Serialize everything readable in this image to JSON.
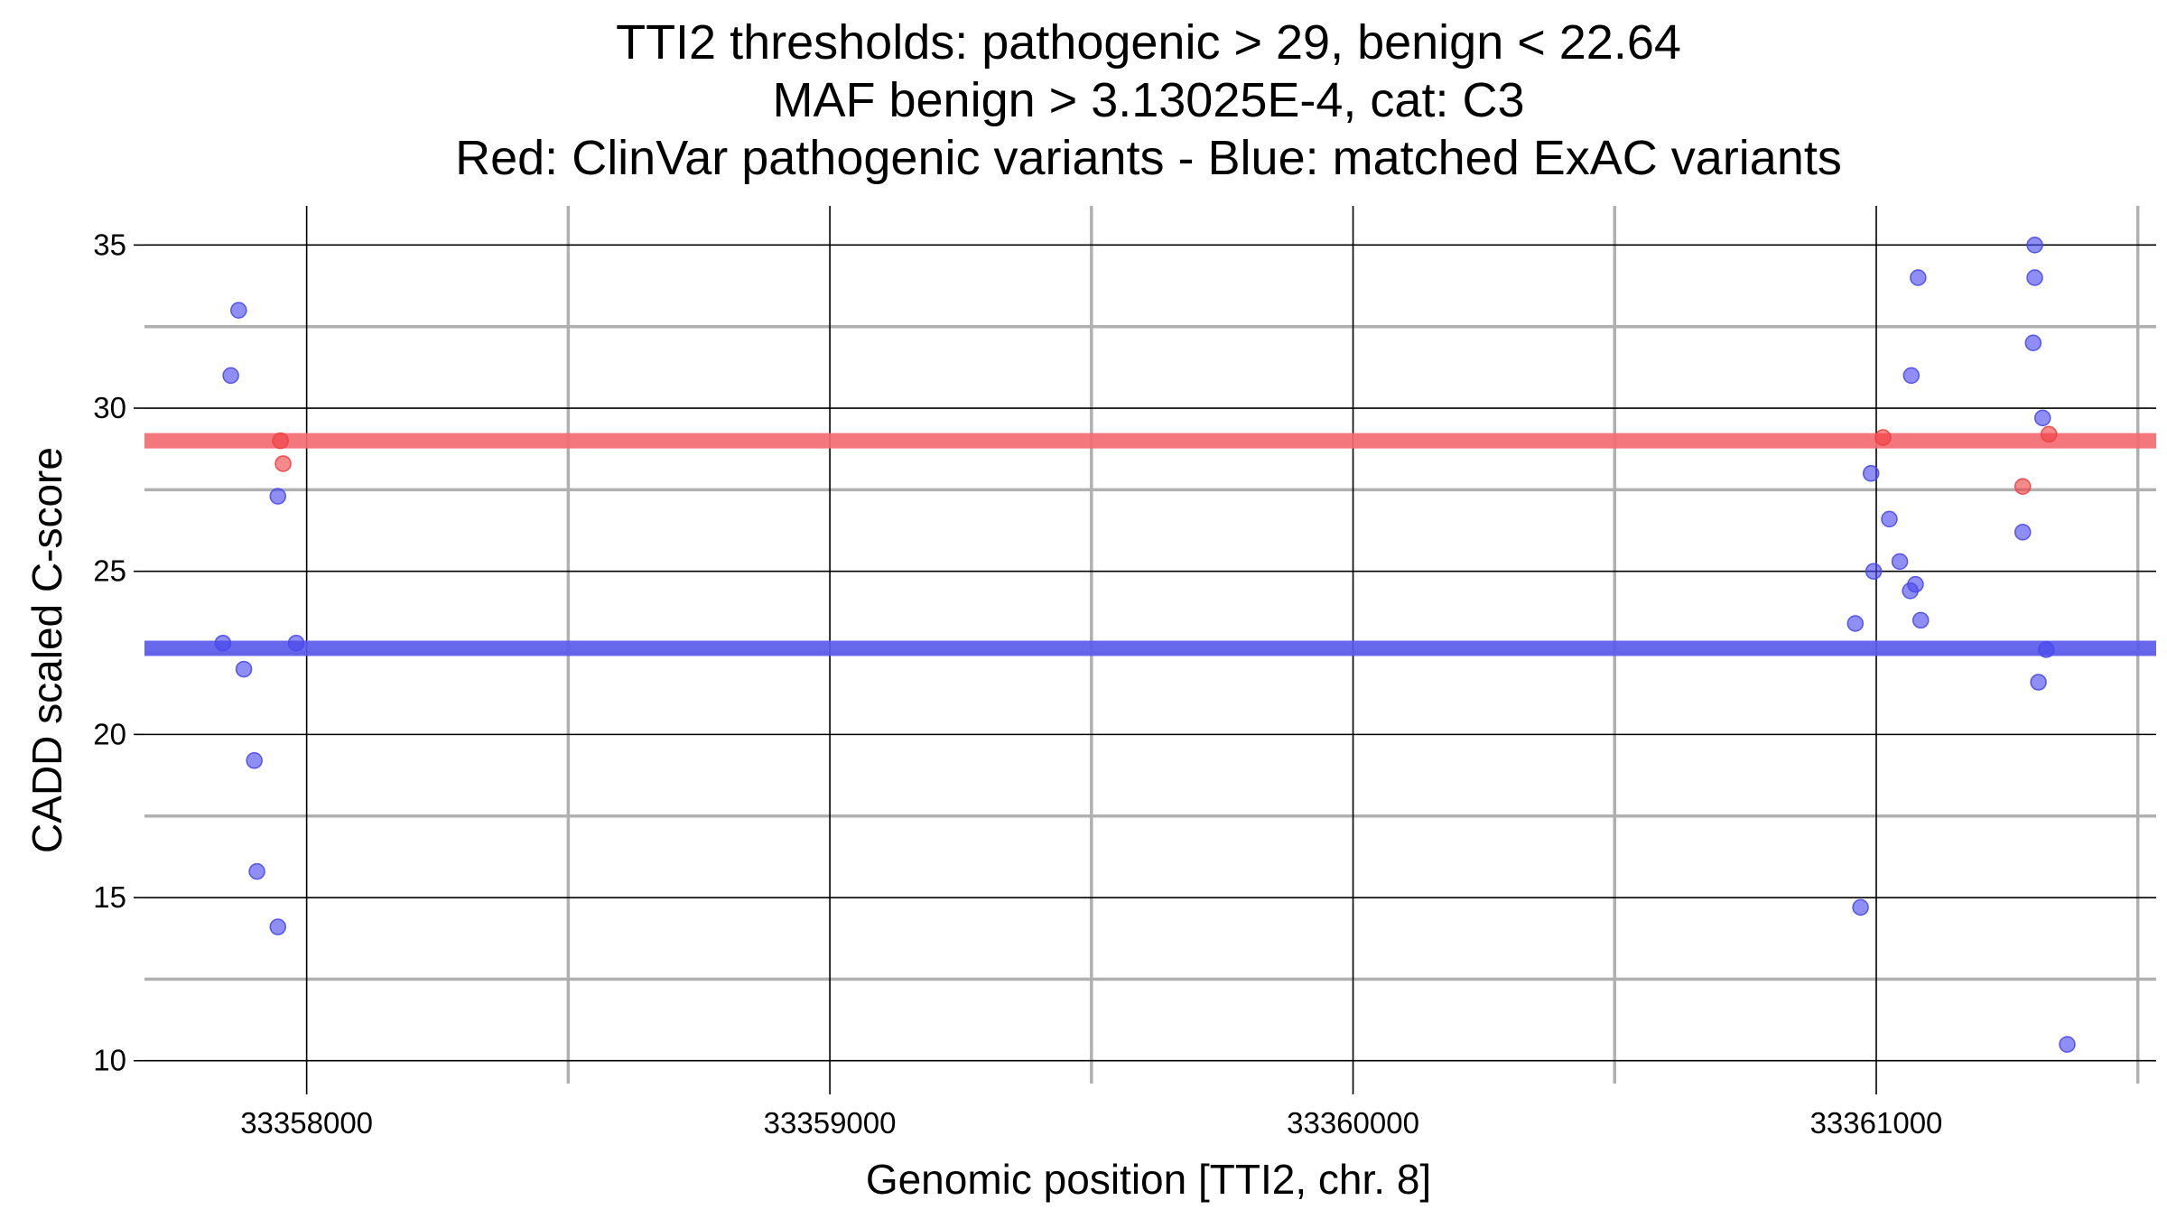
{
  "chart_data": {
    "type": "scatter",
    "title_lines": [
      "TTI2 thresholds: pathogenic > 29, benign < 22.64",
      "MAF benign > 3.13025E-4, cat: C3",
      "Red: ClinVar pathogenic variants - Blue: matched ExAC variants"
    ],
    "xlabel": "Genomic position [TTI2, chr. 8]",
    "ylabel": "CADD scaled C-score",
    "xlim": [
      33357690,
      33361535
    ],
    "ylim": [
      9.3,
      36.2
    ],
    "x_ticks": [
      33358000,
      33359000,
      33360000,
      33361000
    ],
    "x_tick_labels": [
      "33358000",
      "33359000",
      "33360000",
      "33361000"
    ],
    "x_minor_grid": [
      33358500,
      33359500,
      33360500,
      33361500
    ],
    "y_ticks": [
      10,
      15,
      20,
      25,
      30,
      35
    ],
    "y_tick_labels": [
      "10",
      "15",
      "20",
      "25",
      "30",
      "35"
    ],
    "y_minor_grid": [
      12.5,
      17.5,
      22.5,
      27.5,
      32.5
    ],
    "thresholds": [
      {
        "name": "pathogenic",
        "value": 29,
        "color": "#f26b72"
      },
      {
        "name": "benign",
        "value": 22.64,
        "color": "#5b5bea"
      }
    ],
    "series": [
      {
        "name": "ClinVar pathogenic variants",
        "color": "#f04040",
        "points": [
          {
            "x": 33357950,
            "y": 29.0
          },
          {
            "x": 33357955,
            "y": 28.3
          },
          {
            "x": 33361013,
            "y": 29.1
          },
          {
            "x": 33361280,
            "y": 27.6
          },
          {
            "x": 33361330,
            "y": 29.2
          }
        ]
      },
      {
        "name": "matched ExAC variants",
        "color": "#4848ee",
        "points": [
          {
            "x": 33357870,
            "y": 33.0
          },
          {
            "x": 33357855,
            "y": 31.0
          },
          {
            "x": 33357945,
            "y": 27.3
          },
          {
            "x": 33357840,
            "y": 22.8
          },
          {
            "x": 33357980,
            "y": 22.8
          },
          {
            "x": 33357880,
            "y": 22.0
          },
          {
            "x": 33357900,
            "y": 19.2
          },
          {
            "x": 33357905,
            "y": 15.8
          },
          {
            "x": 33357945,
            "y": 14.1
          },
          {
            "x": 33361080,
            "y": 34.0
          },
          {
            "x": 33361067,
            "y": 31.0
          },
          {
            "x": 33360990,
            "y": 28.0
          },
          {
            "x": 33361025,
            "y": 26.6
          },
          {
            "x": 33361045,
            "y": 25.3
          },
          {
            "x": 33360995,
            "y": 25.0
          },
          {
            "x": 33361075,
            "y": 24.6
          },
          {
            "x": 33361065,
            "y": 24.4
          },
          {
            "x": 33361085,
            "y": 23.5
          },
          {
            "x": 33360960,
            "y": 23.4
          },
          {
            "x": 33360970,
            "y": 14.7
          },
          {
            "x": 33361303,
            "y": 35.0
          },
          {
            "x": 33361303,
            "y": 34.0
          },
          {
            "x": 33361300,
            "y": 32.0
          },
          {
            "x": 33361318,
            "y": 29.7
          },
          {
            "x": 33361280,
            "y": 26.2
          },
          {
            "x": 33361325,
            "y": 22.6
          },
          {
            "x": 33361310,
            "y": 21.6
          },
          {
            "x": 33361365,
            "y": 10.5
          }
        ]
      }
    ]
  }
}
